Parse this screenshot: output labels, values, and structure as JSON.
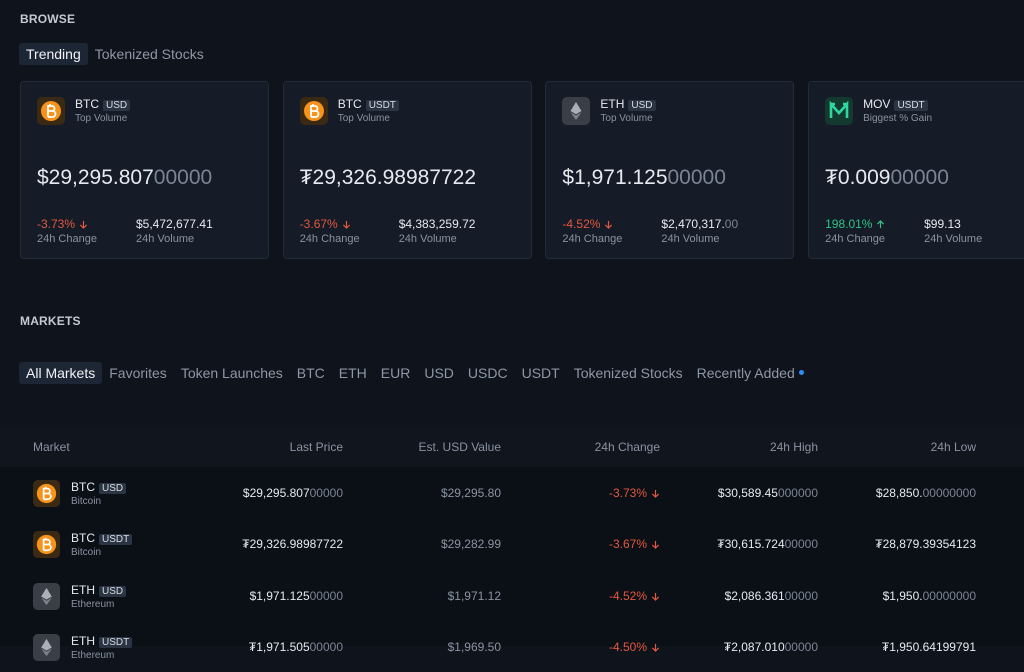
{
  "browse": {
    "title": "BROWSE",
    "tabs": [
      "Trending",
      "Tokenized Stocks"
    ],
    "cards": [
      {
        "base": "BTC",
        "quote": "USD",
        "subtitle": "Top Volume",
        "icon": "btc",
        "price": "$29,295.807",
        "price_dim": "00000",
        "change": "-3.73%",
        "direction": "down",
        "change_label": "24h Change",
        "volume": "$5,472,677.41",
        "volume_label": "24h Volume"
      },
      {
        "base": "BTC",
        "quote": "USDT",
        "subtitle": "Top Volume",
        "icon": "btc",
        "price": "₮29,326.98987722",
        "change": "-3.67%",
        "direction": "down",
        "change_label": "24h Change",
        "volume": "$4,383,259.72",
        "volume_label": "24h Volume"
      },
      {
        "base": "ETH",
        "quote": "USD",
        "subtitle": "Top Volume",
        "icon": "eth",
        "price": "$1,971.125",
        "price_dim": "00000",
        "change": "-4.52%",
        "direction": "down",
        "change_label": "24h Change",
        "volume": "$2,470,317.",
        "volume_dim": "00",
        "volume_label": "24h Volume"
      },
      {
        "base": "MOV",
        "quote": "USDT",
        "subtitle": "Biggest % Gain",
        "icon": "mov",
        "price": "₮0.009",
        "price_dim": "00000",
        "change": "198.01%",
        "direction": "up",
        "change_label": "24h Change",
        "volume": "$99.13",
        "volume_label": "24h Volume"
      }
    ]
  },
  "markets": {
    "title": "MARKETS",
    "tabs": [
      "All Markets",
      "Favorites",
      "Token Launches",
      "BTC",
      "ETH",
      "EUR",
      "USD",
      "USDC",
      "USDT",
      "Tokenized Stocks",
      "Recently Added"
    ],
    "table": {
      "columns": [
        "Market",
        "Last Price",
        "Est. USD Value",
        "24h Change",
        "24h High",
        "24h Low"
      ],
      "rows": [
        {
          "base": "BTC",
          "quote": "USD",
          "name": "Bitcoin",
          "icon": "btc",
          "last_price": "$29,295.807",
          "last_price_dim": "00000",
          "usd_value": "$29,295.80",
          "change": "-3.73%",
          "high": "$30,589.45",
          "high_dim": "000000",
          "low": "$28,850.",
          "low_dim": "00000000"
        },
        {
          "base": "BTC",
          "quote": "USDT",
          "name": "Bitcoin",
          "icon": "btc",
          "last_price": "₮29,326.98987722",
          "usd_value": "$29,282.99",
          "change": "-3.67%",
          "high": "₮30,615.724",
          "high_dim": "00000",
          "low": "₮28,879.39354123"
        },
        {
          "base": "ETH",
          "quote": "USD",
          "name": "Ethereum",
          "icon": "eth",
          "last_price": "$1,971.125",
          "last_price_dim": "00000",
          "usd_value": "$1,971.12",
          "change": "-4.52%",
          "high": "$2,086.361",
          "high_dim": "00000",
          "low": "$1,950.",
          "low_dim": "00000000"
        },
        {
          "base": "ETH",
          "quote": "USDT",
          "name": "Ethereum",
          "icon": "eth",
          "last_price": "₮1,971.505",
          "last_price_dim": "00000",
          "usd_value": "$1,969.50",
          "change": "-4.50%",
          "high": "₮2,087.010",
          "high_dim": "00000",
          "low": "₮1,950.64199791"
        }
      ]
    }
  }
}
